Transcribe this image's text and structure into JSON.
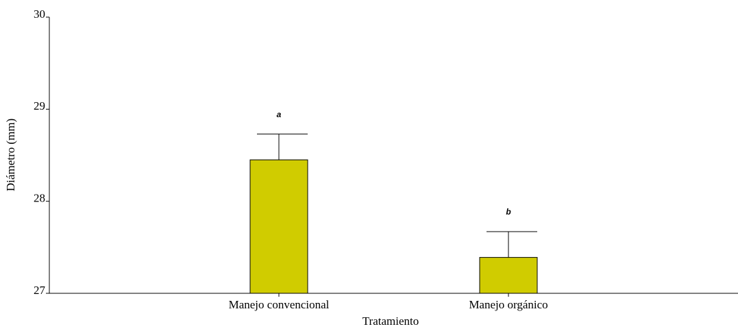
{
  "chart_data": {
    "type": "bar",
    "categories": [
      "Manejo convencional",
      "Manejo orgánico"
    ],
    "values": [
      28.45,
      27.39
    ],
    "errors": [
      0.28,
      0.28
    ],
    "annotations": [
      "a",
      "b"
    ],
    "color": "#d0cc00",
    "xlabel": "Tratamiento",
    "ylabel": "Diámetro (mm)",
    "ylim": [
      27,
      30
    ],
    "yticks": [
      27,
      28,
      29,
      30
    ]
  }
}
